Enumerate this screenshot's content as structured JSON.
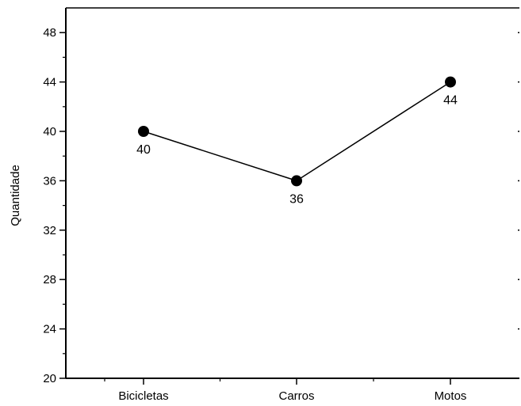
{
  "chart_data": {
    "type": "line",
    "title": "",
    "xlabel": "",
    "ylabel": "Quantidade",
    "categories": [
      "Bicicletas",
      "Carros",
      "Motos"
    ],
    "series": [
      {
        "values": [
          40,
          36,
          44
        ]
      }
    ],
    "data_labels": [
      "40",
      "36",
      "44"
    ],
    "ylim": [
      20,
      50
    ],
    "yticks": [
      20,
      24,
      28,
      32,
      36,
      40,
      44,
      48
    ],
    "ytick_labels": [
      "20",
      "24",
      "28",
      "32",
      "36",
      "40",
      "44",
      "48"
    ],
    "grid": false,
    "legend": "none",
    "colors": {
      "line": "#000000",
      "marker": "#000000",
      "axis": "#000000"
    }
  }
}
